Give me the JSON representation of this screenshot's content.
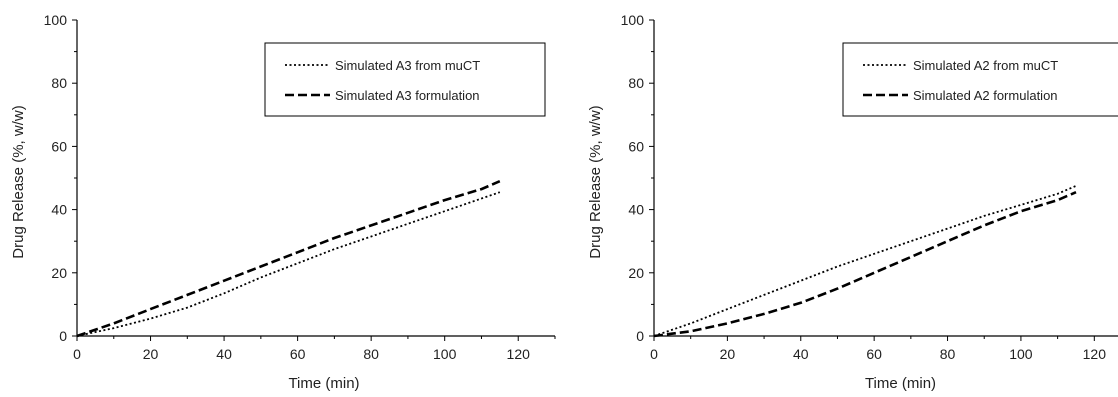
{
  "chart_data": [
    {
      "type": "line",
      "title": "",
      "xlabel": "Time (min)",
      "ylabel": "Drug Release (%, w/w)",
      "xlim": [
        0,
        130
      ],
      "ylim": [
        0,
        100
      ],
      "xticks": [
        0,
        20,
        40,
        60,
        80,
        100,
        120
      ],
      "yticks": [
        0,
        20,
        40,
        60,
        80,
        100
      ],
      "grid": false,
      "legend_position": "top-right",
      "series": [
        {
          "name": "Simulated A3 from muCT",
          "style": "dotted",
          "color": "#000000",
          "x": [
            0,
            10,
            20,
            30,
            40,
            50,
            60,
            70,
            80,
            90,
            100,
            110,
            115
          ],
          "y": [
            0,
            2.5,
            5.5,
            9,
            13.5,
            18.5,
            23,
            27.5,
            31.5,
            35.5,
            39.5,
            43.5,
            45.5
          ]
        },
        {
          "name": "Simulated A3 formulation",
          "style": "dashed",
          "color": "#000000",
          "x": [
            0,
            10,
            20,
            30,
            40,
            50,
            60,
            70,
            80,
            90,
            100,
            110,
            115
          ],
          "y": [
            0,
            4,
            8.5,
            13,
            17.5,
            22,
            26.5,
            31,
            35,
            39,
            43,
            46.5,
            49
          ]
        }
      ]
    },
    {
      "type": "line",
      "title": "",
      "xlabel": "Time (min)",
      "ylabel": "Drug Release (%, w/w)",
      "xlim": [
        0,
        130
      ],
      "ylim": [
        0,
        100
      ],
      "xticks": [
        0,
        20,
        40,
        60,
        80,
        100,
        120
      ],
      "yticks": [
        0,
        20,
        40,
        60,
        80,
        100
      ],
      "grid": false,
      "legend_position": "top-right",
      "series": [
        {
          "name": "Simulated A2 from muCT",
          "style": "dotted",
          "color": "#000000",
          "x": [
            0,
            10,
            20,
            30,
            40,
            50,
            60,
            70,
            80,
            90,
            100,
            110,
            115
          ],
          "y": [
            0,
            4,
            8.5,
            13,
            17.5,
            22,
            26,
            30,
            34,
            38,
            41.5,
            45,
            47.5
          ]
        },
        {
          "name": "Simulated A2 formulation",
          "style": "dashed",
          "color": "#000000",
          "x": [
            0,
            10,
            20,
            30,
            40,
            50,
            60,
            70,
            80,
            90,
            100,
            110,
            115
          ],
          "y": [
            0,
            1.5,
            4,
            7,
            10.5,
            15,
            20,
            25,
            30,
            35,
            39.5,
            43,
            45.5
          ]
        }
      ]
    }
  ]
}
